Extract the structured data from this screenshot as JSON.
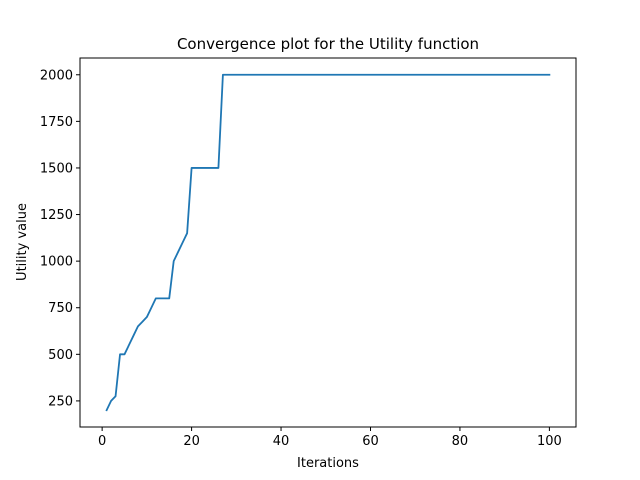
{
  "chart_data": {
    "type": "line",
    "title": "Convergence plot for the Utility function",
    "xlabel": "Iterations",
    "ylabel": "Utility value",
    "xlim": [
      -4.95,
      105.95
    ],
    "ylim": [
      110,
      2090
    ],
    "xticks": [
      0,
      20,
      40,
      60,
      80,
      100
    ],
    "yticks": [
      250,
      500,
      750,
      1000,
      1250,
      1500,
      1750,
      2000
    ],
    "grid": false,
    "series": [
      {
        "color": "#1f77b4",
        "x": [
          1,
          2,
          3,
          4,
          5,
          6,
          7,
          8,
          9,
          10,
          11,
          12,
          13,
          14,
          15,
          16,
          17,
          18,
          19,
          20,
          21,
          22,
          23,
          24,
          25,
          26,
          27,
          100
        ],
        "y": [
          200,
          250,
          275,
          500,
          500,
          550,
          600,
          650,
          675,
          700,
          750,
          800,
          800,
          800,
          800,
          1000,
          1050,
          1100,
          1150,
          1500,
          1500,
          1500,
          1500,
          1500,
          1500,
          1500,
          2000,
          2000
        ]
      }
    ]
  }
}
